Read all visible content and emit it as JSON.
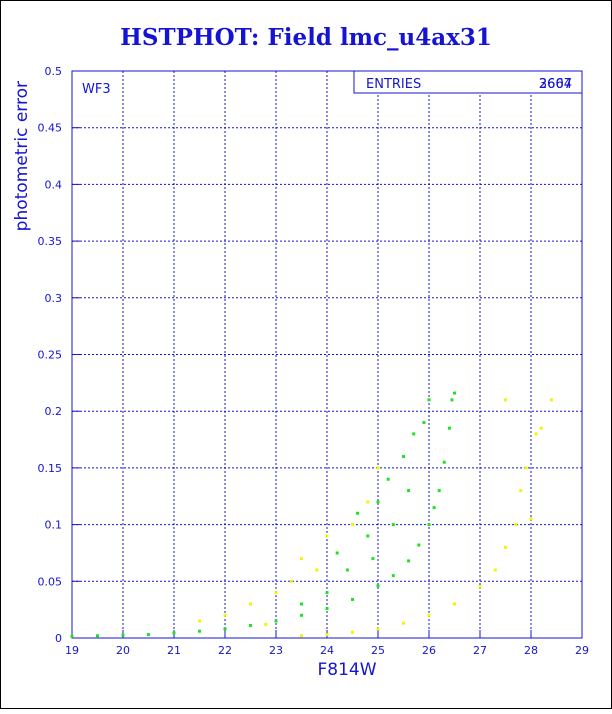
{
  "title": "HSTPHOT: Field lmc_u4ax31",
  "colors": {
    "axis": "#1414d2",
    "frame": "#000000",
    "series_a": "#22e022",
    "series_b": "#f4f400"
  },
  "chart_data": {
    "type": "scatter",
    "title": "HSTPHOT: Field lmc_u4ax31",
    "xlabel": "F814W",
    "ylabel": "photometric error",
    "xlim": [
      19,
      29
    ],
    "ylim": [
      0,
      0.5
    ],
    "xticks": [
      "19",
      "20",
      "21",
      "22",
      "23",
      "24",
      "25",
      "26",
      "27",
      "28",
      "29"
    ],
    "yticks": [
      "0",
      "0.05",
      "0.1",
      "0.15",
      "0.2",
      "0.25",
      "0.3",
      "0.35",
      "0.4",
      "0.45",
      "0.5"
    ],
    "grid": true,
    "panel_label": "WF3",
    "stats_box": {
      "label": "ENTRIES",
      "values": [
        "2607",
        "3664"
      ]
    },
    "series": [
      {
        "color": "#22e022",
        "points": [
          [
            19.0,
            0.0015
          ],
          [
            19.5,
            0.002
          ],
          [
            20.0,
            0.0025
          ],
          [
            20.5,
            0.003
          ],
          [
            21.0,
            0.0045
          ],
          [
            21.5,
            0.006
          ],
          [
            22.0,
            0.008
          ],
          [
            22.5,
            0.011
          ],
          [
            23.0,
            0.015
          ],
          [
            23.5,
            0.02
          ],
          [
            24.0,
            0.026
          ],
          [
            24.5,
            0.034
          ],
          [
            25.0,
            0.046
          ],
          [
            25.3,
            0.055
          ],
          [
            25.6,
            0.068
          ],
          [
            25.8,
            0.082
          ],
          [
            26.0,
            0.1
          ],
          [
            26.1,
            0.115
          ],
          [
            26.2,
            0.13
          ],
          [
            26.3,
            0.155
          ],
          [
            26.4,
            0.185
          ],
          [
            26.45,
            0.21
          ],
          [
            26.5,
            0.216
          ],
          [
            24.0,
            0.04
          ],
          [
            24.4,
            0.06
          ],
          [
            24.8,
            0.09
          ],
          [
            25.0,
            0.12
          ],
          [
            25.2,
            0.14
          ],
          [
            25.5,
            0.16
          ],
          [
            25.7,
            0.18
          ],
          [
            25.9,
            0.19
          ],
          [
            26.0,
            0.21
          ],
          [
            24.6,
            0.11
          ],
          [
            25.3,
            0.1
          ],
          [
            25.6,
            0.13
          ],
          [
            24.9,
            0.07
          ],
          [
            23.5,
            0.03
          ],
          [
            24.2,
            0.075
          ]
        ]
      },
      {
        "color": "#f4f400",
        "points": [
          [
            23.5,
            0.002
          ],
          [
            24.0,
            0.003
          ],
          [
            24.5,
            0.005
          ],
          [
            25.0,
            0.008
          ],
          [
            25.5,
            0.013
          ],
          [
            26.0,
            0.02
          ],
          [
            26.5,
            0.03
          ],
          [
            27.0,
            0.045
          ],
          [
            27.3,
            0.06
          ],
          [
            27.5,
            0.08
          ],
          [
            27.7,
            0.1
          ],
          [
            27.8,
            0.13
          ],
          [
            27.9,
            0.15
          ],
          [
            28.1,
            0.18
          ],
          [
            28.2,
            0.185
          ],
          [
            28.4,
            0.21
          ],
          [
            27.5,
            0.21
          ],
          [
            28.0,
            0.105
          ],
          [
            22.0,
            0.02
          ],
          [
            22.5,
            0.03
          ],
          [
            23.0,
            0.04
          ],
          [
            23.3,
            0.05
          ],
          [
            23.5,
            0.07
          ],
          [
            24.0,
            0.09
          ],
          [
            24.5,
            0.1
          ],
          [
            24.8,
            0.12
          ],
          [
            25.0,
            0.15
          ],
          [
            21.5,
            0.015
          ],
          [
            22.8,
            0.012
          ],
          [
            23.8,
            0.06
          ]
        ]
      }
    ]
  }
}
